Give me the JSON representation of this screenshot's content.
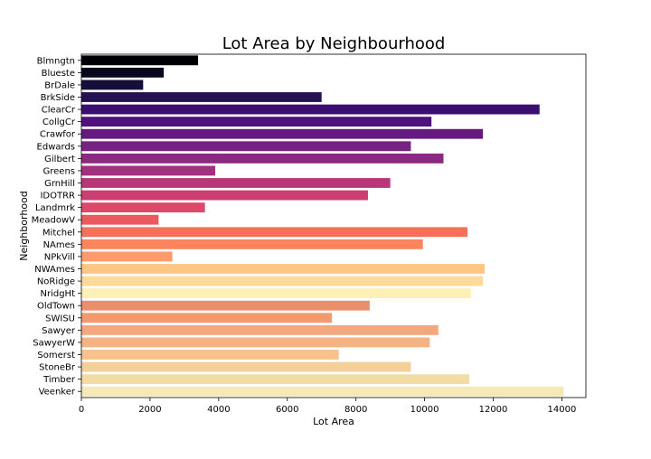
{
  "chart_data": {
    "type": "bar",
    "orientation": "horizontal",
    "title": "Lot Area by Neighbourhood",
    "xlabel": "Lot Area",
    "ylabel": "Neighborhood",
    "xlim": [
      0,
      14700
    ],
    "x_ticks": [
      0,
      2000,
      4000,
      6000,
      8000,
      10000,
      12000,
      14000
    ],
    "grid": false,
    "palette": "magma",
    "categories": [
      "Blmngtn",
      "Blueste",
      "BrDale",
      "BrkSide",
      "ClearCr",
      "CollgCr",
      "Crawfor",
      "Edwards",
      "Gilbert",
      "Greens",
      "GrnHill",
      "IDOTRR",
      "Landmrk",
      "MeadowV",
      "Mitchel",
      "NAmes",
      "NPkVill",
      "NWAmes",
      "NoRidge",
      "NridgHt",
      "OldTown",
      "SWISU",
      "Sawyer",
      "SawyerW",
      "Somerst",
      "StoneBr",
      "Timber",
      "Veenker"
    ],
    "values": [
      3400,
      2400,
      1800,
      7000,
      13350,
      10200,
      11700,
      9600,
      10550,
      3900,
      9000,
      8350,
      3600,
      2250,
      11250,
      9950,
      2650,
      11750,
      11700,
      11350,
      8400,
      7300,
      10400,
      10150,
      7500,
      9600,
      11300,
      14050
    ],
    "colors": [
      "#000004",
      "#07061c",
      "#150e38",
      "#251255",
      "#3b0f70",
      "#4f127b",
      "#641a80",
      "#782281",
      "#8c2981",
      "#a1307e",
      "#b73779",
      "#ca3e72",
      "#dd4a69",
      "#ec5860",
      "#f5705b",
      "#f9855f",
      "#fd9a6a",
      "#fec686",
      "#feda9a",
      "#fcf0b4",
      "#ea8f6c",
      "#f19a6f",
      "#f4a77c",
      "#f5b384",
      "#f6c38e",
      "#f4cf99",
      "#f3dca4",
      "#f6e9b8"
    ]
  }
}
